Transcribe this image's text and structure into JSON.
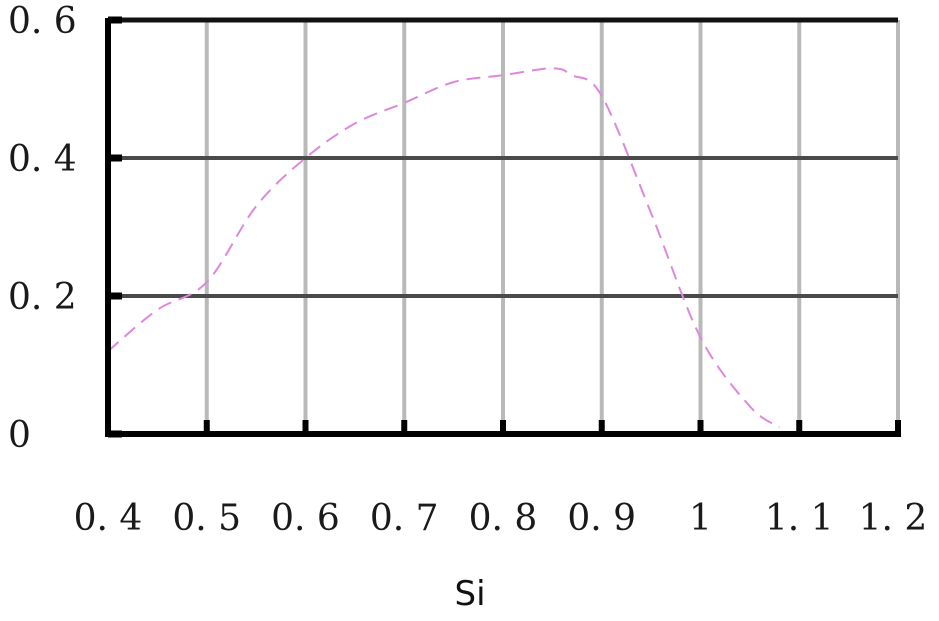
{
  "chart_data": {
    "type": "line",
    "title": "",
    "xlabel": "Si",
    "ylabel": "",
    "xlim": [
      0.4,
      1.2
    ],
    "ylim": [
      0,
      0.6
    ],
    "x_ticks": [
      0.4,
      0.5,
      0.6,
      0.7,
      0.8,
      0.9,
      1.0,
      1.1,
      1.2
    ],
    "x_tick_labels": [
      "0. 4",
      "0. 5",
      "0. 6",
      "0. 7",
      "0. 8",
      "0. 9",
      "1",
      "1. 1",
      "1. 2"
    ],
    "y_ticks": [
      0,
      0.2,
      0.4,
      0.6
    ],
    "y_tick_labels": [
      "0",
      "0. 2",
      "0. 4",
      "0. 6"
    ],
    "grid": true,
    "legend": "none",
    "series": [
      {
        "color": "#dd88dd",
        "line_style": "dashed",
        "x": [
          0.4,
          0.45,
          0.5,
          0.55,
          0.6,
          0.65,
          0.7,
          0.75,
          0.8,
          0.85,
          0.87,
          0.9,
          0.95,
          1.0,
          1.05,
          1.08
        ],
        "y": [
          0.12,
          0.18,
          0.22,
          0.33,
          0.4,
          0.45,
          0.48,
          0.51,
          0.52,
          0.53,
          0.52,
          0.49,
          0.32,
          0.14,
          0.04,
          0.01
        ]
      }
    ]
  }
}
